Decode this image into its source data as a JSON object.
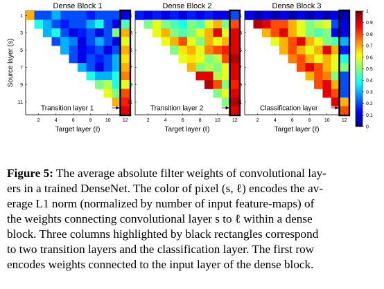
{
  "chart_data": {
    "type": "heatmap",
    "ylabel": "Source layer (s)",
    "xlabel": "Target layer (ℓ)",
    "x_ticks": [
      2,
      4,
      6,
      8,
      10,
      12
    ],
    "y_ticks": [
      1,
      3,
      5,
      7,
      9,
      11
    ],
    "colorbar": {
      "min": 0,
      "max": 1,
      "ticks": [
        "0",
        "0.1",
        "0.2",
        "0.3",
        "0.4",
        "0.5",
        "0.6",
        "0.7",
        "0.8",
        "0.9",
        "1"
      ]
    },
    "panels": [
      {
        "title": "Dense Block 1",
        "annotation": "Transition layer 1",
        "matrix": [
          [
            0.7,
            0.2,
            0.2,
            0.3,
            0.2,
            0.2,
            0.2,
            0.15,
            0.2,
            0.2,
            0.2,
            0.1
          ],
          [
            null,
            0.4,
            0.3,
            0.2,
            0.15,
            0.2,
            0.2,
            0.3,
            0.4,
            0.2,
            0.1,
            0.45
          ],
          [
            null,
            null,
            0.3,
            0.4,
            0.2,
            0.1,
            0.15,
            0.2,
            0.1,
            0.2,
            0.5,
            0.7
          ],
          [
            null,
            null,
            null,
            0.2,
            0.3,
            0.25,
            0.1,
            0.2,
            0.3,
            0.2,
            0.1,
            0.6
          ],
          [
            null,
            null,
            null,
            null,
            0.3,
            0.2,
            0.1,
            0.15,
            0.2,
            0.1,
            0.2,
            0.7
          ],
          [
            null,
            null,
            null,
            null,
            null,
            0.2,
            0.1,
            0.2,
            0.15,
            0.2,
            0.3,
            0.65
          ],
          [
            null,
            null,
            null,
            null,
            null,
            null,
            0.3,
            0.2,
            0.1,
            0.2,
            0.3,
            0.7
          ],
          [
            null,
            null,
            null,
            null,
            null,
            null,
            null,
            0.4,
            0.3,
            0.3,
            0.4,
            0.75
          ],
          [
            null,
            null,
            null,
            null,
            null,
            null,
            null,
            null,
            0.5,
            0.55,
            0.4,
            0.6
          ],
          [
            null,
            null,
            null,
            null,
            null,
            null,
            null,
            null,
            null,
            0.6,
            0.5,
            0.8
          ],
          [
            null,
            null,
            null,
            null,
            null,
            null,
            null,
            null,
            null,
            null,
            0.7,
            0.85
          ],
          [
            null,
            null,
            null,
            null,
            null,
            null,
            null,
            null,
            null,
            null,
            null,
            0.9
          ]
        ]
      },
      {
        "title": "Dense Block 2",
        "annotation": "Transition layer 2",
        "matrix": [
          [
            0.15,
            0.1,
            0.15,
            0.1,
            0.15,
            0.1,
            0.15,
            0.1,
            0.15,
            0.1,
            0.1,
            0.2
          ],
          [
            null,
            0.5,
            0.6,
            0.5,
            0.45,
            0.4,
            0.5,
            0.45,
            0.6,
            0.7,
            0.5,
            0.8
          ],
          [
            null,
            null,
            0.6,
            0.7,
            0.5,
            0.45,
            0.5,
            0.6,
            0.7,
            0.9,
            0.6,
            0.9
          ],
          [
            null,
            null,
            null,
            0.6,
            0.7,
            0.8,
            0.6,
            0.5,
            0.7,
            0.6,
            0.7,
            0.9
          ],
          [
            null,
            null,
            null,
            null,
            0.5,
            0.65,
            0.7,
            0.6,
            0.75,
            0.8,
            0.85,
            0.9
          ],
          [
            null,
            null,
            null,
            null,
            null,
            0.6,
            0.65,
            0.6,
            0.5,
            0.55,
            0.8,
            0.95
          ],
          [
            null,
            null,
            null,
            null,
            null,
            null,
            0.7,
            0.5,
            0.55,
            0.5,
            0.6,
            0.9
          ],
          [
            null,
            null,
            null,
            null,
            null,
            null,
            null,
            0.9,
            0.9,
            0.55,
            0.6,
            0.9
          ],
          [
            null,
            null,
            null,
            null,
            null,
            null,
            null,
            null,
            0.95,
            0.8,
            0.5,
            0.85
          ],
          [
            null,
            null,
            null,
            null,
            null,
            null,
            null,
            null,
            null,
            0.5,
            0.6,
            0.9
          ],
          [
            null,
            null,
            null,
            null,
            null,
            null,
            null,
            null,
            null,
            null,
            0.5,
            0.95
          ],
          [
            null,
            null,
            null,
            null,
            null,
            null,
            null,
            null,
            null,
            null,
            null,
            0.9
          ]
        ]
      },
      {
        "title": "Dense Block 3",
        "annotation": "Classification layer",
        "matrix": [
          [
            0.1,
            0.05,
            0.1,
            0.05,
            0.1,
            0.05,
            0.1,
            0.05,
            0.1,
            0.05,
            0.1,
            0.05
          ],
          [
            null,
            0.95,
            0.9,
            0.8,
            0.8,
            0.7,
            0.6,
            0.5,
            0.55,
            0.6,
            0.2,
            0.1
          ],
          [
            null,
            null,
            0.7,
            0.8,
            0.9,
            0.7,
            0.6,
            0.5,
            0.45,
            0.5,
            0.1,
            0.1
          ],
          [
            null,
            null,
            null,
            0.6,
            0.7,
            0.8,
            0.9,
            0.7,
            0.6,
            0.5,
            0.45,
            0.3
          ],
          [
            null,
            null,
            null,
            null,
            0.7,
            0.8,
            0.7,
            0.6,
            0.7,
            0.9,
            0.7,
            0.15
          ],
          [
            null,
            null,
            null,
            null,
            null,
            0.75,
            0.8,
            0.7,
            0.6,
            0.7,
            0.6,
            0.4
          ],
          [
            null,
            null,
            null,
            null,
            null,
            null,
            0.8,
            0.9,
            0.8,
            0.7,
            0.6,
            0.5
          ],
          [
            null,
            null,
            null,
            null,
            null,
            null,
            null,
            0.7,
            0.8,
            0.75,
            0.5,
            0.2
          ],
          [
            null,
            null,
            null,
            null,
            null,
            null,
            null,
            null,
            0.8,
            0.9,
            0.7,
            0.2
          ],
          [
            null,
            null,
            null,
            null,
            null,
            null,
            null,
            null,
            null,
            0.9,
            0.8,
            0.2
          ],
          [
            null,
            null,
            null,
            null,
            null,
            null,
            null,
            null,
            null,
            null,
            0.9,
            0.7
          ],
          [
            null,
            null,
            null,
            null,
            null,
            null,
            null,
            null,
            null,
            null,
            null,
            0.8
          ]
        ]
      }
    ]
  },
  "caption": {
    "label": "Figure 5:",
    "lines": [
      " The average absolute filter weights of convolutional lay-",
      "ers in a trained DenseNet. The color of pixel (s, ℓ) encodes the av-",
      "erage L1 norm (normalized by number of input feature-maps) of",
      "the weights connecting convolutional layer s to ℓ within a dense",
      "block. Three columns highlighted by black rectangles correspond",
      "to two transition layers and the classification layer. The first row",
      "encodes weights connected to the input layer of the dense block."
    ]
  }
}
